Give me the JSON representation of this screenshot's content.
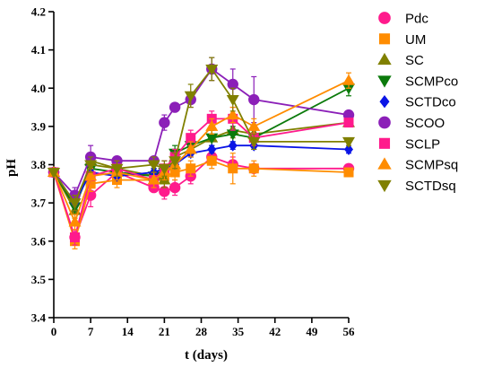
{
  "chart_data": {
    "type": "line",
    "title": "",
    "xlabel": "t (days)",
    "ylabel": "pH",
    "xlim": [
      0,
      56
    ],
    "ylim": [
      3.4,
      4.2
    ],
    "x_ticks": [
      0,
      7,
      14,
      21,
      28,
      35,
      42,
      49,
      56
    ],
    "y_ticks": [
      3.4,
      3.5,
      3.6,
      3.7,
      3.8,
      3.9,
      4.0,
      4.1,
      4.2
    ],
    "legend_position": "right",
    "series": [
      {
        "name": "Pdc",
        "color": "#ff1a8c",
        "marker": "circle",
        "x": [
          0,
          4,
          7,
          12,
          19,
          21,
          23,
          26,
          30,
          34,
          38,
          56
        ],
        "y": [
          3.78,
          3.61,
          3.72,
          3.78,
          3.74,
          3.73,
          3.74,
          3.77,
          3.82,
          3.8,
          3.79,
          3.79
        ],
        "err": [
          0,
          0.02,
          0.03,
          0.02,
          0.01,
          0.02,
          0.02,
          0.02,
          0.02,
          0.02,
          0.01,
          0.01
        ]
      },
      {
        "name": "UM",
        "color": "#ff8c00",
        "marker": "square",
        "x": [
          0,
          4,
          7,
          12,
          19,
          21,
          23,
          26,
          30,
          34,
          38,
          56
        ],
        "y": [
          3.78,
          3.6,
          3.75,
          3.76,
          3.76,
          3.77,
          3.78,
          3.79,
          3.81,
          3.79,
          3.79,
          3.78
        ],
        "err": [
          0,
          0.02,
          0.02,
          0.02,
          0.02,
          0.02,
          0.02,
          0.02,
          0.02,
          0.04,
          0.02,
          0.01
        ]
      },
      {
        "name": "SC",
        "color": "#808000",
        "marker": "triangle-up",
        "x": [
          0,
          4,
          7,
          12,
          19,
          21,
          23,
          26,
          30,
          34,
          38,
          56
        ],
        "y": [
          3.78,
          3.68,
          3.81,
          3.79,
          3.77,
          3.76,
          3.82,
          3.84,
          3.87,
          3.89,
          3.88,
          3.91
        ],
        "err": [
          0,
          0.02,
          0.02,
          0.02,
          0.02,
          0.02,
          0.02,
          0.02,
          0.02,
          0.02,
          0.02,
          0.01
        ]
      },
      {
        "name": "SCMPco",
        "color": "#0b7a0b",
        "marker": "triangle-down",
        "x": [
          0,
          4,
          7,
          12,
          19,
          21,
          23,
          26,
          30,
          34,
          38,
          56
        ],
        "y": [
          3.78,
          3.69,
          3.79,
          3.78,
          3.77,
          3.78,
          3.83,
          3.85,
          3.87,
          3.88,
          3.87,
          4.0
        ],
        "err": [
          0,
          0.02,
          0.02,
          0.02,
          0.02,
          0.02,
          0.02,
          0.02,
          0.02,
          0.02,
          0.02,
          0.02
        ]
      },
      {
        "name": "SCTDco",
        "color": "#0a14e6",
        "marker": "diamond",
        "x": [
          0,
          4,
          7,
          12,
          19,
          21,
          23,
          26,
          30,
          34,
          38,
          56
        ],
        "y": [
          3.78,
          3.7,
          3.78,
          3.77,
          3.78,
          3.79,
          3.8,
          3.83,
          3.84,
          3.85,
          3.85,
          3.84
        ],
        "err": [
          0,
          0.02,
          0.02,
          0.01,
          0.01,
          0.01,
          0.01,
          0.01,
          0.01,
          0.01,
          0.01,
          0.01
        ]
      },
      {
        "name": "SCOO",
        "color": "#8b1fb8",
        "marker": "circle",
        "x": [
          0,
          4,
          7,
          12,
          19,
          21,
          23,
          26,
          30,
          34,
          38,
          56
        ],
        "y": [
          3.78,
          3.72,
          3.82,
          3.81,
          3.81,
          3.91,
          3.95,
          3.97,
          4.05,
          4.01,
          3.97,
          3.93
        ],
        "err": [
          0,
          0.02,
          0.03,
          0.01,
          0.01,
          0.02,
          0.01,
          0.02,
          0.03,
          0.04,
          0.06,
          0.01
        ]
      },
      {
        "name": "SCLP",
        "color": "#ff1a8c",
        "marker": "square",
        "x": [
          0,
          4,
          7,
          12,
          19,
          21,
          23,
          26,
          30,
          34,
          38,
          56
        ],
        "y": [
          3.78,
          3.61,
          3.77,
          3.79,
          3.76,
          3.79,
          3.82,
          3.87,
          3.92,
          3.92,
          3.87,
          3.91
        ],
        "err": [
          0,
          0.02,
          0.02,
          0.02,
          0.02,
          0.02,
          0.02,
          0.02,
          0.02,
          0.03,
          0.02,
          0.01
        ]
      },
      {
        "name": "SCMPsq",
        "color": "#ff8c00",
        "marker": "triangle-up",
        "x": [
          0,
          4,
          7,
          12,
          19,
          21,
          23,
          26,
          30,
          34,
          38,
          56
        ],
        "y": [
          3.78,
          3.65,
          3.77,
          3.78,
          3.76,
          3.78,
          3.8,
          3.84,
          3.9,
          3.93,
          3.9,
          4.02
        ],
        "err": [
          0,
          0.02,
          0.02,
          0.02,
          0.02,
          0.02,
          0.02,
          0.02,
          0.02,
          0.02,
          0.02,
          0.02
        ]
      },
      {
        "name": "SCTDsq",
        "color": "#808000",
        "marker": "triangle-down",
        "x": [
          0,
          4,
          7,
          12,
          19,
          21,
          23,
          26,
          30,
          34,
          38,
          56
        ],
        "y": [
          3.78,
          3.7,
          3.8,
          3.79,
          3.8,
          3.79,
          3.81,
          3.98,
          4.05,
          3.97,
          3.86,
          3.86
        ],
        "err": [
          0,
          0.02,
          0.02,
          0.02,
          0.02,
          0.02,
          0.02,
          0.03,
          0.03,
          0.03,
          0.02,
          0.01
        ]
      }
    ]
  }
}
